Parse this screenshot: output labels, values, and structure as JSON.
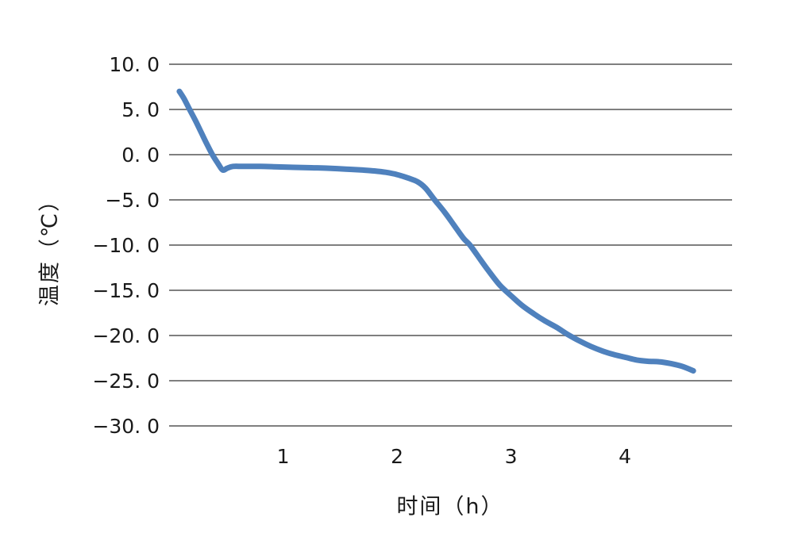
{
  "chart_data": {
    "type": "line",
    "title": "",
    "xlabel": "时间（h）",
    "ylabel": "温度（℃）",
    "xlim": [
      0,
      4.94
    ],
    "ylim": [
      -30,
      10
    ],
    "grid": "horizontal",
    "legend": "none",
    "x_ticks": [
      {
        "value": 1,
        "label": "1"
      },
      {
        "value": 2,
        "label": "2"
      },
      {
        "value": 3,
        "label": "3"
      },
      {
        "value": 4,
        "label": "4"
      }
    ],
    "y_ticks": [
      {
        "value": 10,
        "label": "10. 0"
      },
      {
        "value": 5,
        "label": "5. 0"
      },
      {
        "value": 0,
        "label": "0. 0"
      },
      {
        "value": -5,
        "label": "−5. 0"
      },
      {
        "value": -10,
        "label": "−10. 0"
      },
      {
        "value": -15,
        "label": "−15. 0"
      },
      {
        "value": -20,
        "label": "−20. 0"
      },
      {
        "value": -25,
        "label": "−25. 0"
      },
      {
        "value": -30,
        "label": "−30. 0"
      }
    ],
    "series": [
      {
        "name": "温度",
        "color": "#4f81bd",
        "line_width": 7,
        "points": [
          [
            0.09,
            7.0
          ],
          [
            0.13,
            6.2
          ],
          [
            0.18,
            5.0
          ],
          [
            0.23,
            3.8
          ],
          [
            0.28,
            2.5
          ],
          [
            0.33,
            1.2
          ],
          [
            0.38,
            0.0
          ],
          [
            0.43,
            -1.0
          ],
          [
            0.47,
            -1.7
          ],
          [
            0.51,
            -1.5
          ],
          [
            0.56,
            -1.3
          ],
          [
            0.65,
            -1.3
          ],
          [
            0.8,
            -1.3
          ],
          [
            0.95,
            -1.35
          ],
          [
            1.1,
            -1.4
          ],
          [
            1.25,
            -1.45
          ],
          [
            1.4,
            -1.5
          ],
          [
            1.55,
            -1.6
          ],
          [
            1.7,
            -1.7
          ],
          [
            1.8,
            -1.8
          ],
          [
            1.9,
            -1.95
          ],
          [
            2.0,
            -2.2
          ],
          [
            2.1,
            -2.6
          ],
          [
            2.18,
            -3.0
          ],
          [
            2.25,
            -3.7
          ],
          [
            2.33,
            -5.0
          ],
          [
            2.42,
            -6.4
          ],
          [
            2.5,
            -7.8
          ],
          [
            2.58,
            -9.2
          ],
          [
            2.64,
            -10.0
          ],
          [
            2.72,
            -11.4
          ],
          [
            2.8,
            -12.8
          ],
          [
            2.9,
            -14.4
          ],
          [
            3.0,
            -15.6
          ],
          [
            3.1,
            -16.7
          ],
          [
            3.2,
            -17.6
          ],
          [
            3.3,
            -18.4
          ],
          [
            3.4,
            -19.1
          ],
          [
            3.5,
            -19.9
          ],
          [
            3.6,
            -20.6
          ],
          [
            3.7,
            -21.2
          ],
          [
            3.8,
            -21.7
          ],
          [
            3.9,
            -22.1
          ],
          [
            4.0,
            -22.4
          ],
          [
            4.1,
            -22.7
          ],
          [
            4.2,
            -22.85
          ],
          [
            4.3,
            -22.9
          ],
          [
            4.4,
            -23.1
          ],
          [
            4.5,
            -23.4
          ],
          [
            4.6,
            -23.9
          ]
        ]
      }
    ]
  },
  "colors": {
    "background": "#ffffff",
    "line": "#4f81bd",
    "grid": "#7f7f7f",
    "text": "#1a1a1a"
  }
}
